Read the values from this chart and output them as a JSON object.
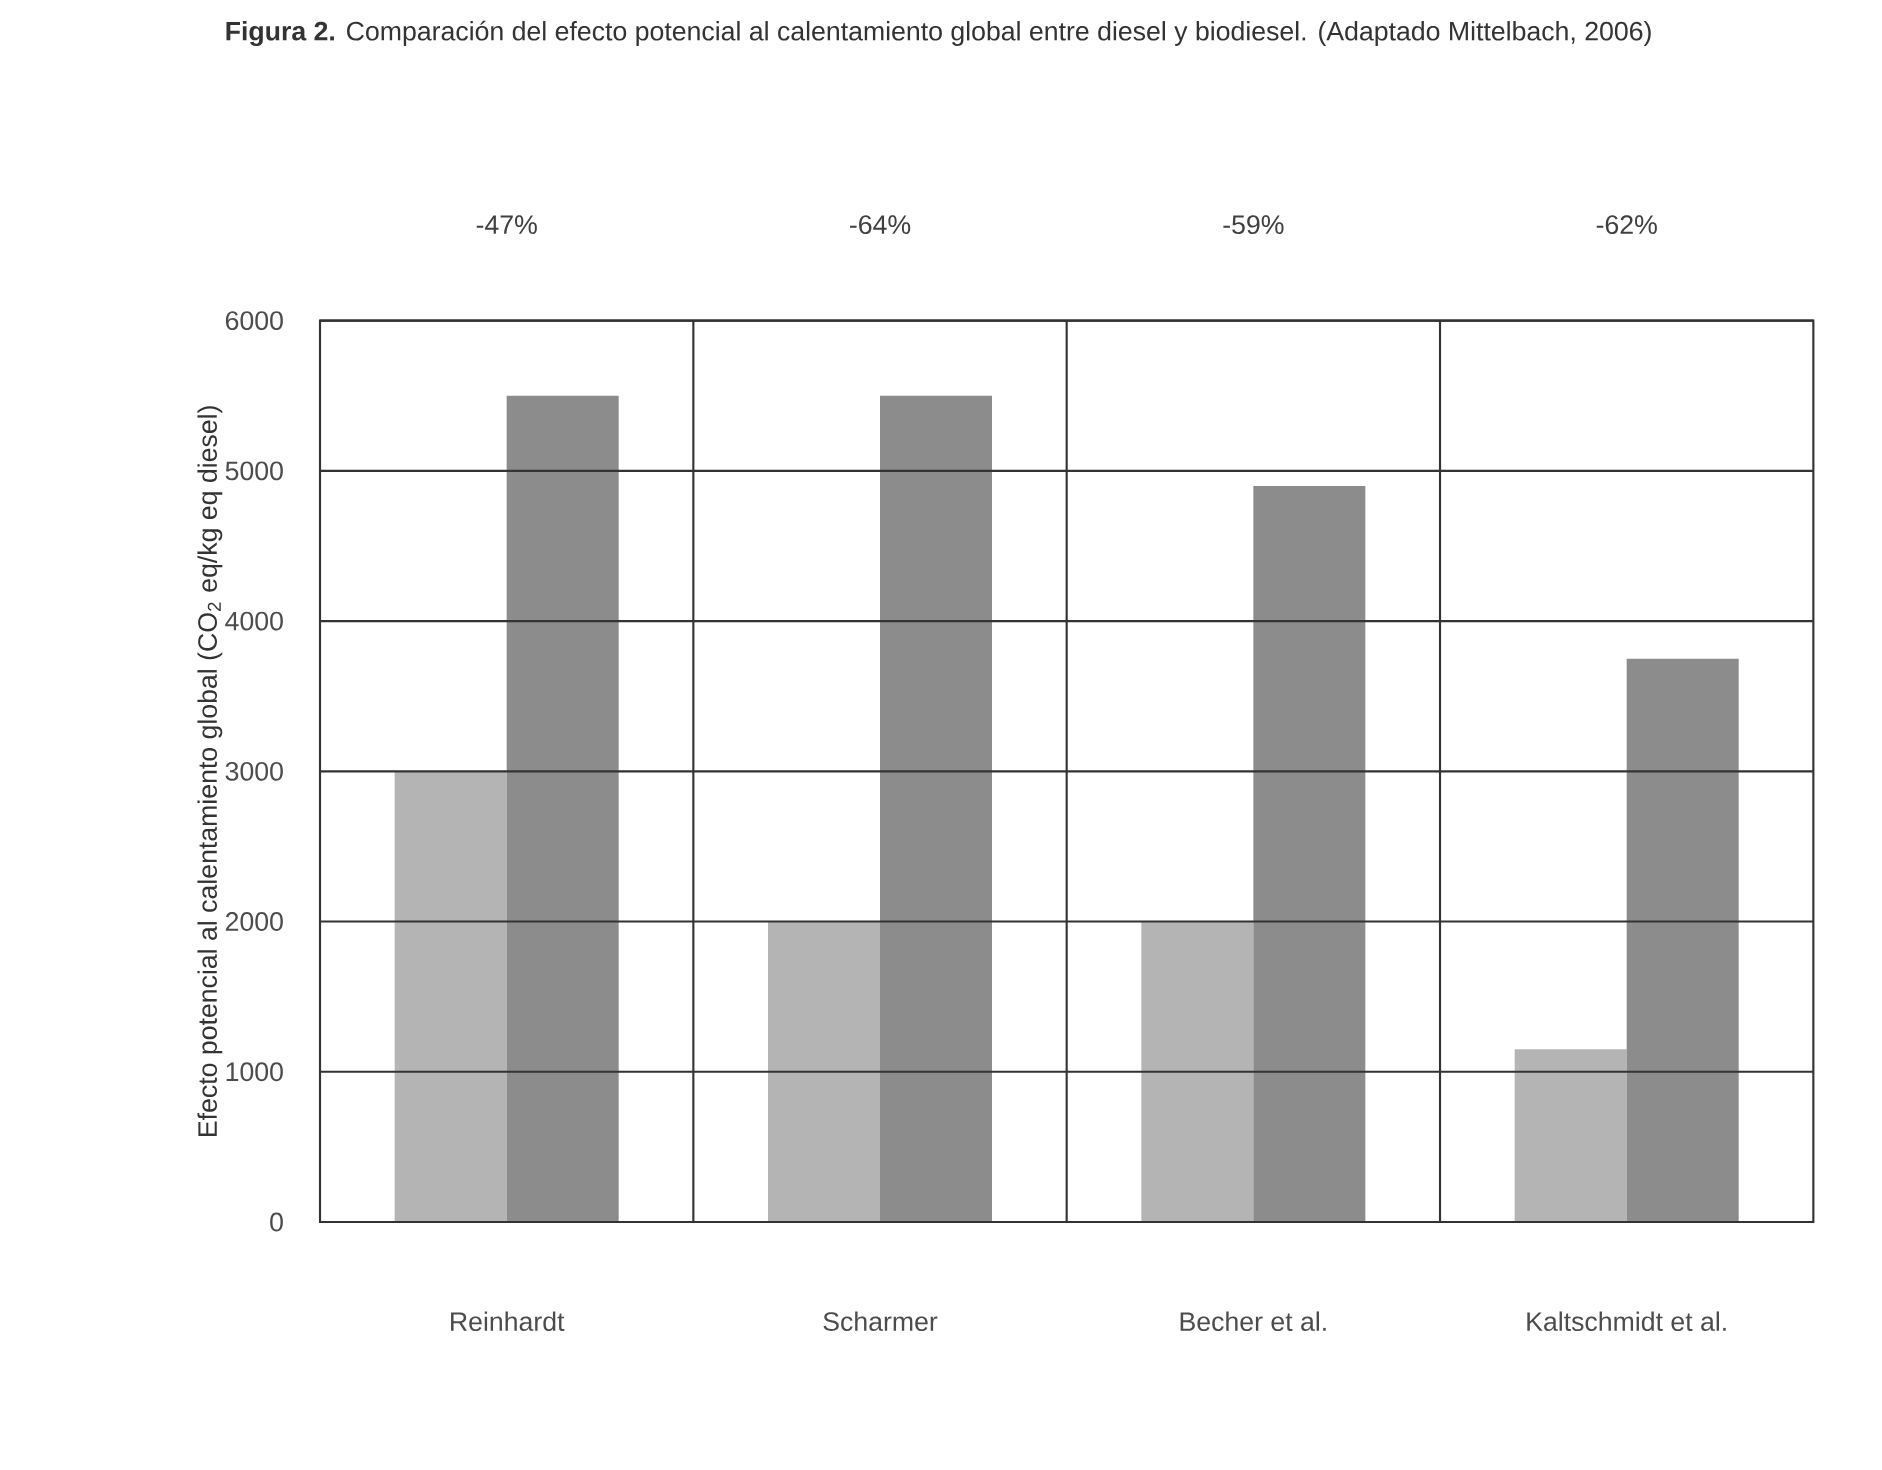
{
  "chart_data": {
    "type": "bar",
    "title": "**Figura 2.** Comparación del efecto potencial al calentamiento global entre diesel y biodiesel. (Adaptado Mittelbach, 2006)",
    "ylabel": "Efecto potencial al calentamiento global (CO$_{2}$ eq/kg eq diesel)",
    "categories": [
      "Reinhardt",
      "Scharmer",
      "Becher et al.",
      "Kaltschmidt et al."
    ],
    "series": [
      {
        "color": "#b4b4b4",
        "values": [
          3000,
          2000,
          2000,
          1150
        ]
      },
      {
        "color": "#8c8c8c",
        "values": [
          5500,
          5500,
          4900,
          3750
        ]
      }
    ],
    "ylim": [
      0,
      6000
    ],
    "yticks": [
      0,
      1000,
      2000,
      3000,
      4000,
      5000,
      6000
    ],
    "grid": true,
    "annotations": [
      "-47%",
      "-64%",
      "-59%",
      "-62%"
    ]
  }
}
